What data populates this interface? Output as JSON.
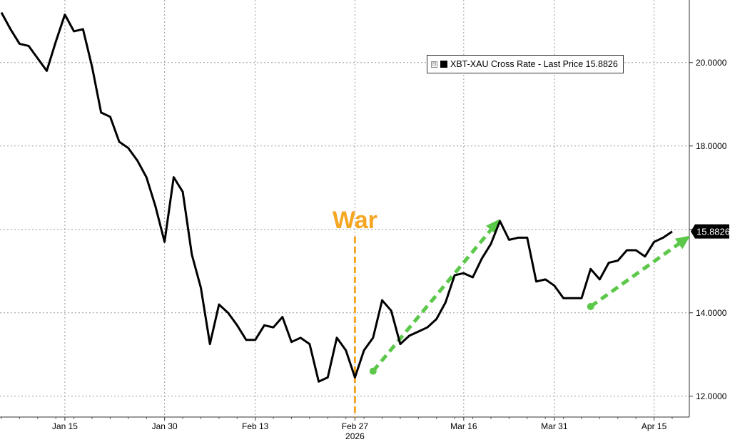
{
  "chart_data": {
    "type": "line",
    "title": "",
    "xlabel": "",
    "ylabel": "",
    "y_axis_side": "right",
    "ylim": [
      11.5,
      21.5
    ],
    "yticks": [
      12,
      14,
      16,
      18,
      20
    ],
    "ytick_labels": [
      "12.0000",
      "14.0000",
      "16.0000",
      "18.0000",
      "20.0000"
    ],
    "x_tick_labels": [
      "Jan 15",
      "Jan 30",
      "Feb 13",
      "Feb 27",
      "Mar 16",
      "Mar 31",
      "Apr 15"
    ],
    "x_year_label": "2026",
    "grid": true,
    "legend_position": "top-right",
    "series": [
      {
        "name": "XBT-XAU Cross Rate - Last Price 15.8826",
        "color": "#000000",
        "last_value_label": "15.8826",
        "values": [
          21.2,
          20.8,
          20.45,
          20.4,
          20.1,
          19.8,
          20.5,
          21.15,
          20.75,
          20.8,
          19.9,
          18.8,
          18.7,
          18.1,
          17.95,
          17.65,
          17.25,
          16.55,
          15.7,
          17.25,
          16.9,
          15.4,
          14.6,
          13.25,
          14.2,
          14.0,
          13.7,
          13.35,
          13.35,
          13.7,
          13.65,
          13.9,
          13.3,
          13.4,
          13.25,
          12.35,
          12.45,
          13.4,
          13.1,
          12.45,
          13.1,
          13.4,
          14.3,
          14.05,
          13.25,
          13.45,
          13.55,
          13.65,
          13.85,
          14.25,
          14.9,
          14.95,
          14.85,
          15.3,
          15.65,
          16.2,
          15.75,
          15.8,
          15.8,
          14.75,
          14.8,
          14.65,
          14.35,
          14.35,
          14.35,
          15.05,
          14.8,
          15.2,
          15.25,
          15.5,
          15.5,
          15.35,
          15.7,
          15.8,
          15.95
        ]
      }
    ],
    "annotations": [
      {
        "type": "vline",
        "label": "War",
        "index": 39,
        "color": "#f5a623",
        "style": "dashed"
      },
      {
        "type": "arrow",
        "color": "#5cc84a",
        "from_index": 41,
        "from_value": 12.6,
        "to_index": 55,
        "to_value": 16.25
      },
      {
        "type": "arrow",
        "color": "#5cc84a",
        "from_index": 65,
        "from_value": 14.15,
        "to_index": 76,
        "to_value": 15.85
      }
    ]
  }
}
